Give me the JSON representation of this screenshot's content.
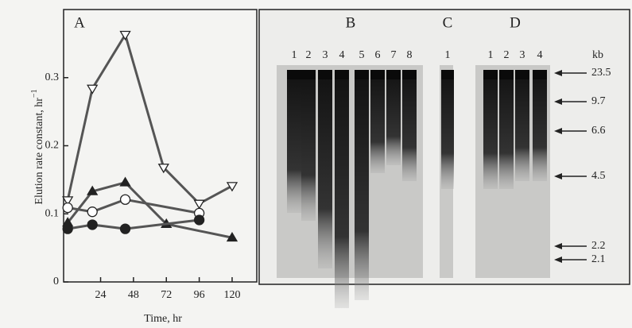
{
  "chart_data": {
    "type": "line",
    "panel_label": "A",
    "y_label": "Elution rate constant, hr",
    "y_label_superscript": "−1",
    "x_label": "Time, hr",
    "xlim": [
      -3,
      138
    ],
    "xticks": [
      24,
      48,
      72,
      96,
      120
    ],
    "ylim": [
      0,
      0.4
    ],
    "yticks": [
      0,
      0.1,
      0.2,
      0.3
    ],
    "series": [
      {
        "marker": "triangle-down-open",
        "color": "#222",
        "x": [
          0,
          18,
          42,
          70,
          96,
          120
        ],
        "values": [
          0.12,
          0.284,
          0.363,
          0.168,
          0.115,
          0.141
        ]
      },
      {
        "marker": "triangle-up-filled",
        "color": "#222",
        "x": [
          0,
          18,
          42,
          72,
          120
        ],
        "values": [
          0.087,
          0.133,
          0.146,
          0.085,
          0.065
        ]
      },
      {
        "marker": "circle-open",
        "color": "#222",
        "x": [
          0,
          18,
          42,
          96
        ],
        "values": [
          0.109,
          0.103,
          0.121,
          0.101
        ]
      },
      {
        "marker": "circle-filled",
        "color": "#222",
        "x": [
          0,
          18,
          42,
          96
        ],
        "values": [
          0.078,
          0.084,
          0.078,
          0.091
        ]
      }
    ]
  },
  "gel": {
    "panels": [
      {
        "label": "B",
        "lanes": [
          1,
          2,
          3,
          4,
          5,
          6,
          7,
          8
        ]
      },
      {
        "label": "C",
        "lanes": [
          1
        ]
      },
      {
        "label": "D",
        "lanes": [
          1,
          2,
          3,
          4
        ]
      }
    ],
    "size_unit": "kb",
    "markers": [
      23.5,
      9.7,
      6.6,
      4.5,
      2.2,
      2.1
    ]
  }
}
